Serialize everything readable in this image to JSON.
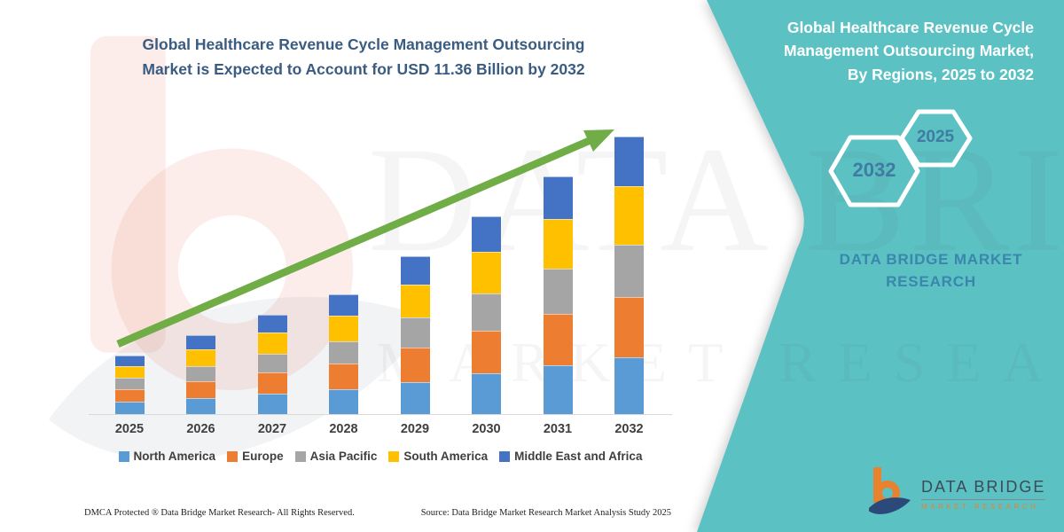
{
  "header": {
    "title_lines": [
      "Global Healthcare Revenue Cycle Management Outsourcing",
      "Market is Expected to Account for USD 11.36 Billion by 2032"
    ],
    "title_color": "#3a5c80"
  },
  "chart_data": {
    "type": "bar",
    "stacked": true,
    "title": "Global Healthcare Revenue Cycle Management Outsourcing Market is Expected to Account for USD 11.36 Billion by 2032",
    "unit": "USD Billion",
    "categories": [
      "2025",
      "2026",
      "2027",
      "2028",
      "2029",
      "2030",
      "2031",
      "2032"
    ],
    "series": [
      {
        "name": "North America",
        "color": "#5B9BD5",
        "values": [
          0.49,
          0.66,
          0.83,
          1.0,
          1.32,
          1.66,
          1.99,
          2.33
        ]
      },
      {
        "name": "Europe",
        "color": "#ED7D31",
        "values": [
          0.52,
          0.7,
          0.87,
          1.05,
          1.39,
          1.74,
          2.09,
          2.44
        ]
      },
      {
        "name": "Asia Pacific",
        "color": "#A5A5A5",
        "values": [
          0.46,
          0.61,
          0.77,
          0.93,
          1.23,
          1.54,
          1.85,
          2.16
        ]
      },
      {
        "name": "South America",
        "color": "#FFC000",
        "values": [
          0.5,
          0.68,
          0.85,
          1.03,
          1.36,
          1.7,
          2.04,
          2.39
        ]
      },
      {
        "name": "Middle East and Africa",
        "color": "#4472C4",
        "values": [
          0.43,
          0.58,
          0.74,
          0.89,
          1.16,
          1.45,
          1.76,
          2.04
        ]
      }
    ],
    "totals": [
      2.4,
      3.23,
      4.06,
      4.9,
      6.46,
      8.09,
      9.73,
      11.36
    ],
    "ylim": [
      0,
      12
    ],
    "grid": false,
    "legend_position": "bottom",
    "trend_arrow_color": "#70AD47",
    "axis_line_color": "#d9d9d9",
    "label_color": "#3f3f3f"
  },
  "right_panel": {
    "background_color": "#5cc1c3",
    "title_lines": [
      "Global Healthcare Revenue Cycle",
      "Management Outsourcing Market,",
      "By Regions, 2025 to 2032"
    ],
    "hexagons": {
      "large_label": "2032",
      "small_label": "2025",
      "label_color": "#3f7ba3"
    },
    "brand_lines": [
      "DATA BRIDGE MARKET",
      "RESEARCH"
    ],
    "brand_color": "#3a86ad",
    "logo": {
      "title": "DATA BRIDGE",
      "subtitle": "MARKET RESEARCH",
      "orange": "#e8822f",
      "navy": "#2b4a7a",
      "title_color": "#3d4a57",
      "subtitle_color": "#e08537"
    }
  },
  "watermarks": {
    "line1": "DATA BRIDGE",
    "line2": "MARKET RESEARCH"
  },
  "footer": {
    "left": "DMCA Protected ® Data Bridge Market Research-  All Rights Reserved.",
    "right": "Source: Data Bridge Market Research  Market Analysis Study 2025"
  }
}
